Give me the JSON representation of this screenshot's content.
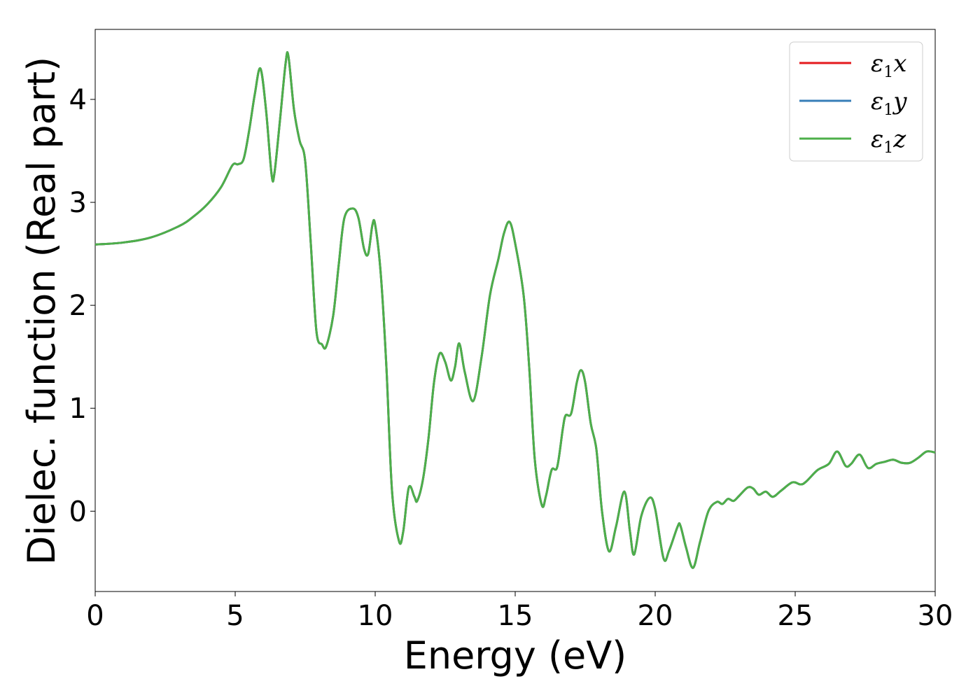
{
  "chart_data": {
    "type": "line",
    "xlabel": "Energy (eV)",
    "ylabel": "Dielec. function (Real part)",
    "xlim": [
      0,
      30
    ],
    "ylim": [
      -0.78,
      4.68
    ],
    "x_ticks": [
      0,
      5,
      10,
      15,
      20,
      25,
      30
    ],
    "y_ticks": [
      0,
      1,
      2,
      3,
      4
    ],
    "x_tick_labels": [
      "0",
      "5",
      "10",
      "15",
      "20",
      "25",
      "30"
    ],
    "y_tick_labels": [
      "0",
      "1",
      "2",
      "3",
      "4"
    ],
    "grid": false,
    "legend_position": "top-right",
    "series": [
      {
        "name": "x",
        "legend": {
          "sym": "ε",
          "sub": "1",
          "var": "x"
        },
        "color": "#e41a1c",
        "ref": "shared"
      },
      {
        "name": "y",
        "legend": {
          "sym": "ε",
          "sub": "1",
          "var": "y"
        },
        "color": "#377eb8",
        "ref": "shared"
      },
      {
        "name": "z",
        "legend": {
          "sym": "ε",
          "sub": "1",
          "var": "z"
        },
        "color": "#4daf4a",
        "ref": "shared"
      }
    ],
    "shared_points": [
      [
        0.0,
        2.59
      ],
      [
        1.0,
        2.61
      ],
      [
        2.0,
        2.66
      ],
      [
        3.0,
        2.77
      ],
      [
        3.5,
        2.86
      ],
      [
        4.0,
        2.98
      ],
      [
        4.5,
        3.15
      ],
      [
        4.9,
        3.36
      ],
      [
        5.1,
        3.37
      ],
      [
        5.3,
        3.42
      ],
      [
        5.5,
        3.7
      ],
      [
        5.7,
        4.05
      ],
      [
        5.9,
        4.3
      ],
      [
        6.1,
        3.9
      ],
      [
        6.3,
        3.27
      ],
      [
        6.4,
        3.28
      ],
      [
        6.6,
        3.8
      ],
      [
        6.8,
        4.35
      ],
      [
        6.9,
        4.42
      ],
      [
        7.1,
        3.9
      ],
      [
        7.3,
        3.6
      ],
      [
        7.5,
        3.4
      ],
      [
        7.7,
        2.6
      ],
      [
        7.9,
        1.75
      ],
      [
        8.1,
        1.62
      ],
      [
        8.25,
        1.6
      ],
      [
        8.5,
        1.9
      ],
      [
        8.7,
        2.4
      ],
      [
        8.9,
        2.85
      ],
      [
        9.2,
        2.94
      ],
      [
        9.4,
        2.85
      ],
      [
        9.6,
        2.55
      ],
      [
        9.75,
        2.5
      ],
      [
        9.9,
        2.78
      ],
      [
        10.0,
        2.78
      ],
      [
        10.2,
        2.3
      ],
      [
        10.4,
        1.4
      ],
      [
        10.6,
        0.2
      ],
      [
        10.85,
        -0.29
      ],
      [
        11.0,
        -0.2
      ],
      [
        11.2,
        0.23
      ],
      [
        11.4,
        0.14
      ],
      [
        11.5,
        0.1
      ],
      [
        11.7,
        0.3
      ],
      [
        11.9,
        0.7
      ],
      [
        12.1,
        1.25
      ],
      [
        12.3,
        1.53
      ],
      [
        12.5,
        1.45
      ],
      [
        12.7,
        1.27
      ],
      [
        12.85,
        1.4
      ],
      [
        13.0,
        1.63
      ],
      [
        13.2,
        1.35
      ],
      [
        13.5,
        1.07
      ],
      [
        13.8,
        1.5
      ],
      [
        14.1,
        2.1
      ],
      [
        14.4,
        2.45
      ],
      [
        14.6,
        2.7
      ],
      [
        14.8,
        2.81
      ],
      [
        15.0,
        2.6
      ],
      [
        15.3,
        2.1
      ],
      [
        15.5,
        1.4
      ],
      [
        15.7,
        0.5
      ],
      [
        15.95,
        0.06
      ],
      [
        16.1,
        0.15
      ],
      [
        16.3,
        0.4
      ],
      [
        16.5,
        0.43
      ],
      [
        16.7,
        0.8
      ],
      [
        16.8,
        0.93
      ],
      [
        17.0,
        0.95
      ],
      [
        17.2,
        1.25
      ],
      [
        17.35,
        1.37
      ],
      [
        17.5,
        1.25
      ],
      [
        17.7,
        0.85
      ],
      [
        17.9,
        0.6
      ],
      [
        18.1,
        0.0
      ],
      [
        18.35,
        -0.39
      ],
      [
        18.6,
        -0.15
      ],
      [
        18.9,
        0.19
      ],
      [
        19.1,
        -0.2
      ],
      [
        19.25,
        -0.42
      ],
      [
        19.5,
        -0.05
      ],
      [
        19.8,
        0.13
      ],
      [
        20.0,
        0.02
      ],
      [
        20.3,
        -0.46
      ],
      [
        20.5,
        -0.38
      ],
      [
        20.8,
        -0.15
      ],
      [
        20.9,
        -0.14
      ],
      [
        21.1,
        -0.35
      ],
      [
        21.35,
        -0.55
      ],
      [
        21.6,
        -0.3
      ],
      [
        21.9,
        0.0
      ],
      [
        22.2,
        0.09
      ],
      [
        22.4,
        0.07
      ],
      [
        22.6,
        0.12
      ],
      [
        22.8,
        0.1
      ],
      [
        23.0,
        0.15
      ],
      [
        23.3,
        0.23
      ],
      [
        23.5,
        0.22
      ],
      [
        23.7,
        0.16
      ],
      [
        23.95,
        0.19
      ],
      [
        24.2,
        0.14
      ],
      [
        24.5,
        0.2
      ],
      [
        24.9,
        0.28
      ],
      [
        25.2,
        0.26
      ],
      [
        25.4,
        0.29
      ],
      [
        25.8,
        0.4
      ],
      [
        26.2,
        0.46
      ],
      [
        26.5,
        0.58
      ],
      [
        26.8,
        0.44
      ],
      [
        27.0,
        0.46
      ],
      [
        27.3,
        0.55
      ],
      [
        27.6,
        0.42
      ],
      [
        27.9,
        0.46
      ],
      [
        28.2,
        0.48
      ],
      [
        28.5,
        0.5
      ],
      [
        28.8,
        0.47
      ],
      [
        29.1,
        0.47
      ],
      [
        29.4,
        0.52
      ],
      [
        29.7,
        0.58
      ],
      [
        30.0,
        0.57
      ]
    ]
  }
}
